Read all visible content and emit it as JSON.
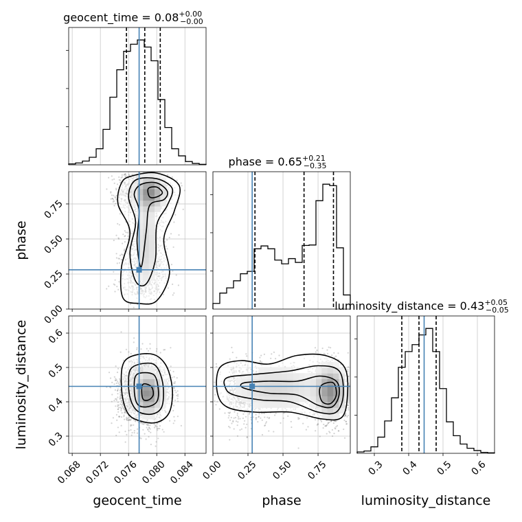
{
  "chart_data": {
    "type": "corner",
    "parameters": [
      "geocent_time",
      "phase",
      "luminosity_distance"
    ],
    "titles": [
      {
        "name": "geocent_time",
        "median": "0.08",
        "plus": "+0.00",
        "minus": "−0.00"
      },
      {
        "name": "phase",
        "median": "0.65",
        "plus": "+0.21",
        "minus": "−0.35"
      },
      {
        "name": "luminosity_distance",
        "median": "0.43",
        "plus": "+0.05",
        "minus": "−0.05"
      }
    ],
    "axis_labels": [
      "geocent_time",
      "phase",
      "luminosity_distance"
    ],
    "ranges": [
      [
        0.0675,
        0.087
      ],
      [
        0.0,
        0.98
      ],
      [
        0.25,
        0.65
      ]
    ],
    "ticks": [
      {
        "values": [
          0.068,
          0.072,
          0.076,
          0.08,
          0.084
        ],
        "labels": [
          "0.068",
          "0.072",
          "0.076",
          "0.080",
          "0.084"
        ]
      },
      {
        "values": [
          0.0,
          0.25,
          0.5,
          0.75
        ],
        "labels": [
          "0.00",
          "0.25",
          "0.50",
          "0.75"
        ]
      },
      {
        "values": [
          0.3,
          0.4,
          0.5,
          0.6
        ],
        "labels": [
          "0.3",
          "0.4",
          "0.5",
          "0.6"
        ]
      }
    ],
    "truths": [
      0.0775,
      0.28,
      0.445
    ],
    "quantiles": [
      [
        0.0757,
        0.0783,
        0.0805
      ],
      [
        0.3,
        0.65,
        0.86
      ],
      [
        0.38,
        0.43,
        0.48
      ]
    ],
    "histograms": [
      {
        "edges_range": [
          0.0675,
          0.087
        ],
        "counts": [
          2,
          4,
          8,
          16,
          34,
          75,
          143,
          201,
          240,
          255,
          264,
          249,
          220,
          138,
          79,
          34,
          19,
          7,
          3,
          1
        ]
      },
      {
        "edges_range": [
          0.0,
          0.98
        ],
        "counts": [
          12,
          34,
          45,
          60,
          75,
          80,
          128,
          134,
          128,
          104,
          96,
          107,
          99,
          135,
          136,
          230,
          265,
          262,
          130,
          30
        ]
      },
      {
        "edges_range": [
          0.25,
          0.65
        ],
        "counts": [
          3,
          5,
          14,
          35,
          70,
          120,
          186,
          220,
          235,
          256,
          270,
          220,
          140,
          68,
          38,
          20,
          11,
          6,
          2,
          1
        ]
      }
    ],
    "grid": true,
    "truth_color": "#4682b4",
    "contour_color": "#000000",
    "sample_color": "#808080"
  }
}
